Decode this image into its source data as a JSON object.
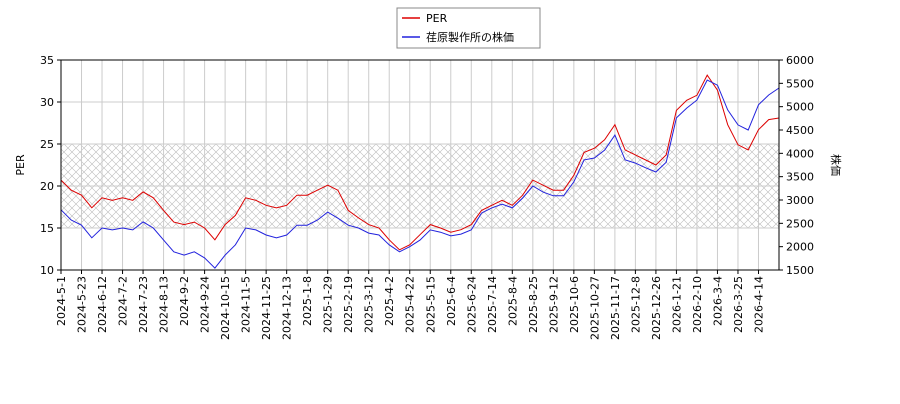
{
  "chart_data": {
    "type": "line",
    "categories": [
      "2024-5-1",
      null,
      "2024-5-23",
      null,
      "2024-6-12",
      null,
      "2024-7-2",
      null,
      "2024-7-23",
      null,
      "2024-8-13",
      null,
      "2024-9-2",
      null,
      "2024-9-24",
      null,
      "2024-10-15",
      null,
      "2024-11-5",
      null,
      "2024-11-25",
      null,
      "2024-12-13",
      null,
      "2025-1-8",
      null,
      "2025-1-29",
      null,
      "2025-2-19",
      null,
      "2025-3-12",
      null,
      "2025-4-2",
      null,
      "2025-4-22",
      null,
      "2025-5-15",
      null,
      "2025-6-4",
      null,
      "2025-6-24",
      null,
      "2025-7-14",
      null,
      "2025-8-4",
      null,
      "2025-8-25",
      null,
      "2025-9-12",
      null,
      "2025-10-6",
      null,
      "2025-10-27",
      null,
      "2025-11-17",
      null,
      "2025-12-8",
      null,
      "2025-12-26",
      null,
      "2026-1-21",
      null,
      "2026-2-10",
      null,
      "2026-3-4",
      null,
      "2026-3-25",
      null,
      "2026-4-14",
      null,
      null
    ],
    "series": [
      {
        "name": "PER",
        "color": "#dd0000",
        "axis": "y",
        "values": [
          20.7,
          19.5,
          18.9,
          17.4,
          18.6,
          18.3,
          18.6,
          18.3,
          19.3,
          18.6,
          17.1,
          15.7,
          15.4,
          15.7,
          15.0,
          13.6,
          15.4,
          16.5,
          18.6,
          18.3,
          17.7,
          17.4,
          17.7,
          18.9,
          18.9,
          19.5,
          20.1,
          19.5,
          17.1,
          16.2,
          15.4,
          15.0,
          13.6,
          12.4,
          13.0,
          14.2,
          15.4,
          15.0,
          14.5,
          14.8,
          15.4,
          17.1,
          17.7,
          18.3,
          17.7,
          18.9,
          20.7,
          20.1,
          19.5,
          19.5,
          21.3,
          24.0,
          24.5,
          25.5,
          27.3,
          24.3,
          23.7,
          23.1,
          22.5,
          23.7,
          29.0,
          30.2,
          30.8,
          33.2,
          31.4,
          27.3,
          24.9,
          24.3,
          26.7,
          27.9,
          28.1
        ]
      },
      {
        "name": "荏原製作所の株価",
        "color": "#2222dd",
        "axis": "y2",
        "values": [
          2790,
          2570,
          2460,
          2190,
          2400,
          2360,
          2400,
          2360,
          2530,
          2400,
          2140,
          1890,
          1820,
          1890,
          1760,
          1540,
          1820,
          2040,
          2400,
          2360,
          2250,
          2190,
          2250,
          2460,
          2460,
          2570,
          2740,
          2610,
          2460,
          2400,
          2290,
          2250,
          2040,
          1890,
          2000,
          2140,
          2360,
          2310,
          2230,
          2270,
          2360,
          2720,
          2830,
          2910,
          2830,
          3040,
          3300,
          3170,
          3090,
          3090,
          3390,
          3860,
          3900,
          4070,
          4390,
          3860,
          3790,
          3690,
          3600,
          3810,
          4760,
          4970,
          5140,
          5570,
          5460,
          4930,
          4610,
          4500,
          5040,
          5250,
          5400
        ]
      }
    ],
    "ylabel": "PER",
    "y2label": "株価",
    "ylim": [
      10,
      35
    ],
    "yticks": [
      10,
      15,
      20,
      25,
      30,
      35
    ],
    "y2lim": [
      1500,
      6000
    ],
    "y2ticks": [
      1500,
      2000,
      2500,
      3000,
      3500,
      4000,
      4500,
      5000,
      5500,
      6000
    ],
    "band": [
      15,
      25
    ],
    "grid": true,
    "legend": "top"
  }
}
